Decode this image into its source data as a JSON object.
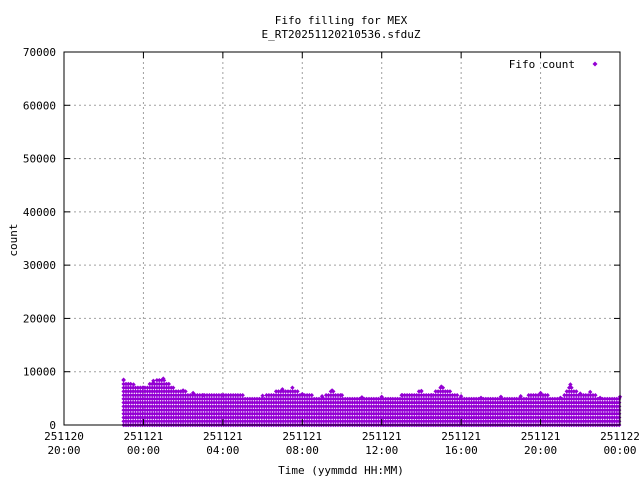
{
  "chart_data": {
    "type": "scatter",
    "title_line1": "Fifo filling for MEX",
    "title_line2": "E_RT20251120210536.sfduZ",
    "xlabel": "Time (yymmdd HH:MM)",
    "ylabel": "count",
    "legend": {
      "label": "Fifo count",
      "position": "top-right",
      "marker": "diamond"
    },
    "series_color": "#9400d3",
    "grid": true,
    "ylim": [
      0,
      70000
    ],
    "yticks": [
      0,
      10000,
      20000,
      30000,
      40000,
      50000,
      60000,
      70000
    ],
    "xlim_hours": [
      -4,
      24
    ],
    "xticks": [
      {
        "hour": -4,
        "line1": "251120",
        "line2": "20:00"
      },
      {
        "hour": 0,
        "line1": "251121",
        "line2": "00:00"
      },
      {
        "hour": 4,
        "line1": "251121",
        "line2": "04:00"
      },
      {
        "hour": 8,
        "line1": "251121",
        "line2": "08:00"
      },
      {
        "hour": 12,
        "line1": "251121",
        "line2": "12:00"
      },
      {
        "hour": 16,
        "line1": "251121",
        "line2": "16:00"
      },
      {
        "hour": 20,
        "line1": "251121",
        "line2": "20:00"
      },
      {
        "hour": 24,
        "line1": "251122",
        "line2": "00:00"
      }
    ],
    "series": [
      {
        "name": "Fifo count",
        "points": [
          {
            "hour": -1.0,
            "value": 8500
          },
          {
            "hour": -0.5,
            "value": 7600
          },
          {
            "hour": 0.0,
            "value": 7000
          },
          {
            "hour": 0.5,
            "value": 8300
          },
          {
            "hour": 1.0,
            "value": 8700
          },
          {
            "hour": 1.5,
            "value": 7000
          },
          {
            "hour": 2.0,
            "value": 6500
          },
          {
            "hour": 2.5,
            "value": 6000
          },
          {
            "hour": 3.0,
            "value": 5600
          },
          {
            "hour": 4.0,
            "value": 5600
          },
          {
            "hour": 5.0,
            "value": 5600
          },
          {
            "hour": 6.0,
            "value": 5500
          },
          {
            "hour": 7.0,
            "value": 6700
          },
          {
            "hour": 7.5,
            "value": 7000
          },
          {
            "hour": 8.0,
            "value": 5800
          },
          {
            "hour": 9.0,
            "value": 5400
          },
          {
            "hour": 9.5,
            "value": 6500
          },
          {
            "hour": 10.0,
            "value": 5600
          },
          {
            "hour": 11.0,
            "value": 5200
          },
          {
            "hour": 12.0,
            "value": 5300
          },
          {
            "hour": 13.0,
            "value": 5600
          },
          {
            "hour": 14.0,
            "value": 6400
          },
          {
            "hour": 14.5,
            "value": 5600
          },
          {
            "hour": 15.0,
            "value": 7200
          },
          {
            "hour": 16.0,
            "value": 5400
          },
          {
            "hour": 17.0,
            "value": 5100
          },
          {
            "hour": 18.0,
            "value": 5300
          },
          {
            "hour": 19.0,
            "value": 5400
          },
          {
            "hour": 20.0,
            "value": 6000
          },
          {
            "hour": 21.0,
            "value": 5100
          },
          {
            "hour": 21.5,
            "value": 7600
          },
          {
            "hour": 22.0,
            "value": 5900
          },
          {
            "hour": 22.5,
            "value": 6200
          },
          {
            "hour": 23.0,
            "value": 5100
          },
          {
            "hour": 24.0,
            "value": 5300
          }
        ],
        "band_min": 0,
        "band_step": 700
      }
    ]
  }
}
